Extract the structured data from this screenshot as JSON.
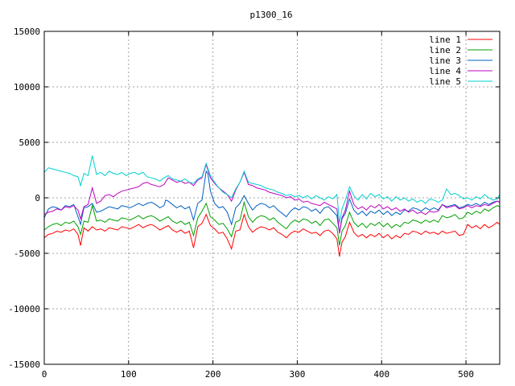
{
  "chart_data": {
    "type": "line",
    "title": "p1300_16",
    "xlabel": "",
    "ylabel": "",
    "xlim": [
      0,
      540
    ],
    "ylim": [
      -15000,
      15000
    ],
    "xticks": [
      0,
      100,
      200,
      300,
      400,
      500
    ],
    "yticks": [
      -15000,
      -10000,
      -5000,
      0,
      5000,
      10000,
      15000
    ],
    "grid": true,
    "legend_position": "top-right",
    "series": [
      {
        "name": "line 1",
        "color": "#ff0000",
        "x": [
          0,
          5,
          10,
          15,
          20,
          25,
          30,
          35,
          40,
          43,
          47,
          52,
          57,
          62,
          67,
          72,
          77,
          82,
          87,
          92,
          97,
          102,
          107,
          112,
          117,
          122,
          127,
          132,
          137,
          142,
          147,
          152,
          157,
          162,
          167,
          172,
          177,
          182,
          187,
          192,
          197,
          202,
          207,
          212,
          217,
          222,
          227,
          232,
          237,
          242,
          247,
          252,
          257,
          262,
          267,
          272,
          277,
          282,
          287,
          292,
          297,
          302,
          307,
          312,
          317,
          322,
          327,
          332,
          337,
          342,
          347,
          350,
          353,
          357,
          362,
          367,
          372,
          377,
          382,
          387,
          392,
          397,
          402,
          407,
          412,
          417,
          422,
          427,
          432,
          437,
          442,
          447,
          452,
          457,
          462,
          467,
          472,
          477,
          482,
          487,
          492,
          497,
          502,
          507,
          512,
          517,
          522,
          527,
          532,
          537,
          540
        ],
        "y": [
          -3600,
          -3300,
          -3200,
          -3000,
          -3100,
          -2900,
          -3000,
          -2800,
          -3300,
          -4300,
          -2700,
          -3000,
          -2600,
          -2900,
          -2800,
          -3000,
          -2700,
          -2800,
          -2900,
          -2600,
          -2700,
          -2800,
          -2600,
          -2400,
          -2700,
          -2500,
          -2400,
          -2600,
          -2900,
          -2700,
          -2500,
          -2900,
          -3100,
          -2900,
          -3200,
          -3000,
          -4500,
          -2600,
          -2300,
          -1500,
          -2500,
          -2800,
          -3200,
          -3100,
          -3700,
          -4600,
          -3000,
          -2900,
          -1500,
          -2600,
          -3100,
          -2800,
          -2600,
          -2700,
          -2900,
          -2700,
          -3100,
          -3300,
          -3600,
          -3200,
          -3000,
          -3100,
          -2800,
          -3000,
          -3200,
          -3100,
          -3400,
          -3000,
          -2900,
          -3200,
          -3700,
          -5300,
          -4000,
          -3500,
          -2200,
          -3100,
          -3500,
          -3300,
          -3600,
          -3300,
          -3500,
          -3200,
          -3600,
          -3300,
          -3700,
          -3400,
          -3600,
          -3200,
          -3300,
          -3000,
          -3100,
          -3300,
          -3000,
          -3200,
          -3100,
          -3300,
          -3000,
          -3200,
          -3100,
          -3000,
          -3400,
          -3300,
          -2400,
          -2700,
          -2500,
          -2800,
          -2400,
          -2700,
          -2500,
          -2200,
          -2400
        ]
      },
      {
        "name": "line 2",
        "color": "#00a000",
        "x": [
          0,
          5,
          10,
          15,
          20,
          25,
          30,
          35,
          40,
          43,
          47,
          52,
          57,
          62,
          67,
          72,
          77,
          82,
          87,
          92,
          97,
          102,
          107,
          112,
          117,
          122,
          127,
          132,
          137,
          142,
          147,
          152,
          157,
          162,
          167,
          172,
          177,
          182,
          187,
          192,
          197,
          202,
          207,
          212,
          217,
          222,
          227,
          232,
          237,
          242,
          247,
          252,
          257,
          262,
          267,
          272,
          277,
          282,
          287,
          292,
          297,
          302,
          307,
          312,
          317,
          322,
          327,
          332,
          337,
          342,
          347,
          350,
          353,
          357,
          362,
          367,
          372,
          377,
          382,
          387,
          392,
          397,
          402,
          407,
          412,
          417,
          422,
          427,
          432,
          437,
          442,
          447,
          452,
          457,
          462,
          467,
          472,
          477,
          482,
          487,
          492,
          497,
          502,
          507,
          512,
          517,
          522,
          527,
          532,
          537,
          540
        ],
        "y": [
          -2900,
          -2600,
          -2400,
          -2300,
          -2500,
          -2200,
          -2300,
          -2100,
          -2600,
          -3300,
          -2100,
          -2200,
          -700,
          -2100,
          -2000,
          -2200,
          -1900,
          -2000,
          -2100,
          -1800,
          -1900,
          -2000,
          -1800,
          -1600,
          -1900,
          -1700,
          -1600,
          -1800,
          -2100,
          -1900,
          -1700,
          -2100,
          -2300,
          -2100,
          -2400,
          -2200,
          -3400,
          -1800,
          -1200,
          -500,
          -1700,
          -2000,
          -2400,
          -2300,
          -2800,
          -3500,
          -2200,
          -2000,
          -400,
          -1700,
          -2200,
          -1800,
          -1600,
          -1700,
          -2000,
          -1800,
          -2200,
          -2500,
          -2800,
          -2300,
          -2000,
          -2200,
          -1900,
          -2000,
          -2300,
          -2100,
          -2500,
          -2000,
          -1900,
          -2300,
          -2700,
          -4300,
          -3000,
          -2500,
          -1300,
          -2200,
          -2600,
          -2300,
          -2700,
          -2300,
          -2500,
          -2200,
          -2600,
          -2300,
          -2700,
          -2400,
          -2600,
          -2200,
          -2300,
          -2000,
          -2100,
          -2300,
          -2000,
          -2200,
          -2000,
          -2200,
          -1600,
          -1800,
          -1700,
          -1500,
          -1900,
          -1800,
          -1300,
          -1500,
          -1200,
          -1400,
          -1000,
          -1200,
          -900,
          -700,
          -800
        ]
      },
      {
        "name": "line 3",
        "color": "#0060c0",
        "x": [
          0,
          5,
          10,
          15,
          20,
          25,
          30,
          35,
          40,
          43,
          47,
          52,
          57,
          62,
          67,
          72,
          77,
          82,
          87,
          92,
          97,
          102,
          107,
          112,
          117,
          122,
          127,
          132,
          137,
          142,
          144,
          147,
          152,
          157,
          162,
          167,
          172,
          177,
          182,
          187,
          192,
          194,
          197,
          202,
          207,
          212,
          217,
          222,
          227,
          232,
          237,
          242,
          247,
          252,
          257,
          262,
          267,
          272,
          277,
          282,
          287,
          292,
          297,
          302,
          307,
          312,
          317,
          322,
          327,
          332,
          337,
          342,
          347,
          350,
          353,
          357,
          362,
          367,
          372,
          377,
          382,
          387,
          392,
          397,
          402,
          407,
          412,
          417,
          422,
          427,
          432,
          437,
          442,
          447,
          452,
          457,
          462,
          467,
          472,
          477,
          482,
          487,
          492,
          497,
          502,
          507,
          512,
          517,
          522,
          527,
          532,
          537,
          540
        ],
        "y": [
          -1800,
          -1000,
          -800,
          -900,
          -1100,
          -700,
          -800,
          -600,
          -1700,
          -2400,
          -900,
          -800,
          -500,
          -1300,
          -1200,
          -1000,
          -800,
          -900,
          -1000,
          -700,
          -800,
          -900,
          -700,
          -500,
          -700,
          -500,
          -400,
          -600,
          -900,
          -700,
          -200,
          -300,
          -600,
          -900,
          -700,
          -1000,
          -800,
          -2000,
          -500,
          -200,
          2400,
          2200,
          600,
          -500,
          -900,
          -800,
          -1300,
          -2400,
          -900,
          -500,
          200,
          -500,
          -1100,
          -700,
          -500,
          -600,
          -900,
          -700,
          -1100,
          -1400,
          -1700,
          -1200,
          -900,
          -1100,
          -800,
          -900,
          -1200,
          -1000,
          -1400,
          -900,
          -800,
          -1200,
          -1600,
          -3200,
          -1900,
          -1400,
          -100,
          -1100,
          -1500,
          -1200,
          -1600,
          -1200,
          -1400,
          -1100,
          -1500,
          -1200,
          -1600,
          -1300,
          -1500,
          -1100,
          -1200,
          -900,
          -1000,
          -1200,
          -900,
          -1100,
          -900,
          -1100,
          -600,
          -800,
          -700,
          -600,
          -900,
          -800,
          -600,
          -700,
          -500,
          -700,
          -400,
          -600,
          -400,
          -300,
          -400
        ]
      },
      {
        "name": "line 4",
        "color": "#c000c0",
        "x": [
          0,
          5,
          10,
          15,
          20,
          25,
          30,
          35,
          40,
          43,
          47,
          52,
          57,
          62,
          67,
          72,
          77,
          82,
          87,
          92,
          97,
          102,
          107,
          112,
          117,
          122,
          127,
          132,
          137,
          142,
          147,
          152,
          157,
          162,
          167,
          172,
          177,
          182,
          187,
          192,
          197,
          202,
          207,
          212,
          217,
          222,
          227,
          232,
          237,
          242,
          247,
          252,
          257,
          262,
          267,
          272,
          277,
          282,
          287,
          292,
          297,
          302,
          307,
          312,
          317,
          322,
          327,
          332,
          337,
          342,
          347,
          350,
          353,
          357,
          362,
          367,
          372,
          377,
          382,
          387,
          392,
          397,
          402,
          407,
          412,
          417,
          422,
          427,
          432,
          437,
          442,
          447,
          452,
          457,
          462,
          467,
          472,
          477,
          482,
          487,
          492,
          497,
          502,
          507,
          512,
          517,
          522,
          527,
          532,
          537,
          540
        ],
        "y": [
          -1500,
          -1300,
          -1200,
          -1000,
          -1100,
          -800,
          -900,
          -700,
          -1100,
          -1900,
          -800,
          -600,
          900,
          -500,
          -300,
          200,
          300,
          100,
          400,
          600,
          700,
          800,
          900,
          1000,
          1300,
          1400,
          1200,
          1100,
          1000,
          1200,
          1800,
          1600,
          1400,
          1500,
          1300,
          1400,
          1100,
          1600,
          1800,
          3000,
          1800,
          1300,
          900,
          600,
          300,
          -300,
          700,
          1400,
          2300,
          1200,
          1100,
          900,
          800,
          700,
          500,
          400,
          300,
          200,
          0,
          100,
          -200,
          -100,
          -400,
          -300,
          -500,
          -600,
          -700,
          -400,
          -600,
          -800,
          -1000,
          -3200,
          -1800,
          -1100,
          600,
          -600,
          -1000,
          -800,
          -1100,
          -700,
          -900,
          -600,
          -1000,
          -800,
          -1100,
          -900,
          -1200,
          -1000,
          -1300,
          -1100,
          -1400,
          -1300,
          -1500,
          -1200,
          -1300,
          -1200,
          -600,
          -900,
          -800,
          -700,
          -1000,
          -900,
          -700,
          -900,
          -700,
          -800,
          -600,
          -700,
          -500,
          -300,
          -400
        ]
      },
      {
        "name": "line 5",
        "color": "#00d0d0",
        "x": [
          0,
          5,
          10,
          15,
          20,
          25,
          30,
          35,
          40,
          43,
          47,
          52,
          57,
          62,
          67,
          72,
          77,
          82,
          87,
          92,
          97,
          102,
          107,
          112,
          117,
          122,
          127,
          132,
          137,
          142,
          147,
          152,
          157,
          162,
          167,
          172,
          177,
          182,
          187,
          192,
          197,
          202,
          207,
          212,
          217,
          222,
          227,
          232,
          237,
          242,
          247,
          252,
          257,
          262,
          267,
          272,
          277,
          282,
          287,
          292,
          297,
          302,
          307,
          312,
          317,
          322,
          327,
          332,
          337,
          342,
          347,
          350,
          353,
          357,
          362,
          367,
          372,
          377,
          382,
          387,
          392,
          397,
          402,
          407,
          412,
          417,
          422,
          427,
          432,
          437,
          442,
          447,
          452,
          457,
          462,
          467,
          472,
          477,
          482,
          487,
          492,
          497,
          502,
          507,
          512,
          517,
          522,
          527,
          532,
          537,
          540
        ],
        "y": [
          2300,
          2700,
          2600,
          2500,
          2400,
          2300,
          2200,
          2000,
          1900,
          1100,
          2200,
          2000,
          3800,
          2100,
          2300,
          2000,
          2400,
          2200,
          2100,
          2300,
          2000,
          2200,
          2300,
          2100,
          2300,
          1900,
          1800,
          1700,
          1500,
          1800,
          2000,
          1700,
          1600,
          1500,
          1700,
          1400,
          1300,
          1700,
          1900,
          3100,
          2000,
          1400,
          900,
          500,
          300,
          0,
          800,
          1400,
          2400,
          1400,
          1300,
          1200,
          1100,
          900,
          800,
          700,
          500,
          400,
          200,
          300,
          100,
          200,
          0,
          200,
          -100,
          200,
          0,
          -200,
          100,
          -100,
          300,
          -2300,
          -1000,
          -200,
          1000,
          200,
          -200,
          300,
          -100,
          400,
          100,
          300,
          -100,
          100,
          -300,
          100,
          -200,
          0,
          -300,
          -100,
          -400,
          -200,
          -500,
          -100,
          -200,
          -400,
          -200,
          800,
          300,
          400,
          200,
          -100,
          0,
          -200,
          100,
          -100,
          300,
          0,
          -200,
          -100,
          300
        ]
      }
    ]
  }
}
